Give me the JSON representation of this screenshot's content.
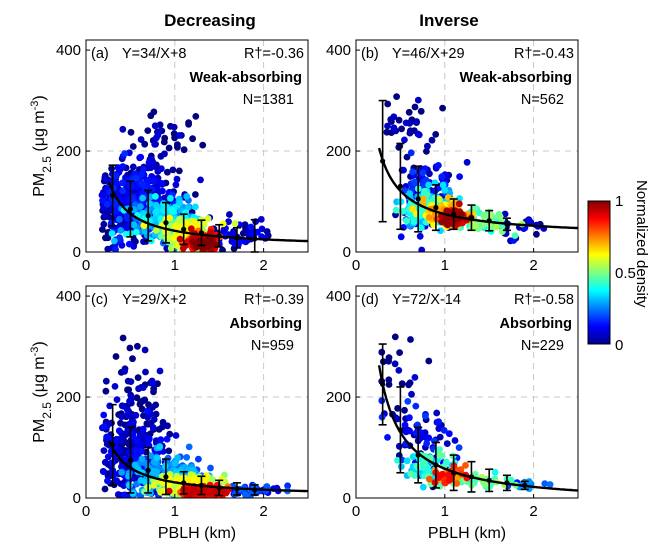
{
  "chart_data": {
    "type": "scatter",
    "colorbar": {
      "label": "Normalized density",
      "ticks": [
        "0",
        "0.5",
        "1"
      ],
      "colormap": "jet"
    },
    "panels": [
      {
        "column_title": "Decreasing",
        "panel_label": "(a)",
        "fit_equation": "Y=34/X+8",
        "r_text": "R†=-0.36",
        "category": "Weak-absorbing",
        "n_text": "N=1381",
        "fit": {
          "a": 34,
          "b": 8
        },
        "xlim": [
          0,
          2.5
        ],
        "ylim": [
          0,
          420
        ],
        "xticks": [
          "0",
          "1",
          "2"
        ],
        "yticks": [
          "0",
          "200",
          "400"
        ],
        "ylabel_show": true,
        "xlabel_show": false,
        "bins": [
          {
            "x": 0.3,
            "mean": 112,
            "sd": 60
          },
          {
            "x": 0.5,
            "mean": 85,
            "sd": 55
          },
          {
            "x": 0.7,
            "mean": 72,
            "sd": 50
          },
          {
            "x": 0.9,
            "mean": 58,
            "sd": 40
          },
          {
            "x": 1.1,
            "mean": 45,
            "sd": 30
          },
          {
            "x": 1.3,
            "mean": 38,
            "sd": 25
          },
          {
            "x": 1.5,
            "mean": 32,
            "sd": 22
          },
          {
            "x": 1.7,
            "mean": 28,
            "sd": 20
          },
          {
            "x": 1.9,
            "mean": 26,
            "sd": 38
          }
        ],
        "clusters": [
          {
            "cx": 0.55,
            "cy": 100,
            "sx": 0.35,
            "sy": 60,
            "n": 380,
            "d": 0.08
          },
          {
            "cx": 0.6,
            "cy": 95,
            "sx": 0.45,
            "sy": 70,
            "n": 140,
            "d": 0.02
          },
          {
            "cx": 0.9,
            "cy": 60,
            "sx": 0.3,
            "sy": 35,
            "n": 220,
            "d": 0.3
          },
          {
            "cx": 1.15,
            "cy": 40,
            "sx": 0.25,
            "sy": 22,
            "n": 160,
            "d": 0.55
          },
          {
            "cx": 1.3,
            "cy": 22,
            "sx": 0.15,
            "sy": 12,
            "n": 130,
            "d": 0.85
          },
          {
            "cx": 1.35,
            "cy": 15,
            "sx": 0.08,
            "sy": 7,
            "n": 70,
            "d": 1.0
          },
          {
            "cx": 1.7,
            "cy": 35,
            "sx": 0.3,
            "sy": 25,
            "n": 60,
            "d": 0.05
          },
          {
            "cx": 0.8,
            "cy": 220,
            "sx": 0.3,
            "sy": 50,
            "n": 40,
            "d": 0.0
          }
        ]
      },
      {
        "column_title": "Inverse",
        "panel_label": "(b)",
        "fit_equation": "Y=46/X+29",
        "r_text": "R†=-0.43",
        "category": "Weak-absorbing",
        "n_text": "N=562",
        "fit": {
          "a": 46,
          "b": 29
        },
        "xlim": [
          0,
          2.5
        ],
        "ylim": [
          0,
          420
        ],
        "xticks": [
          "0",
          "1",
          "2"
        ],
        "yticks": [
          "0",
          "200",
          "400"
        ],
        "ylabel_show": false,
        "xlabel_show": false,
        "bins": [
          {
            "x": 0.3,
            "mean": 180,
            "sd": 120
          },
          {
            "x": 0.5,
            "mean": 130,
            "sd": 85
          },
          {
            "x": 0.7,
            "mean": 105,
            "sd": 65
          },
          {
            "x": 0.9,
            "mean": 88,
            "sd": 45
          },
          {
            "x": 1.1,
            "mean": 75,
            "sd": 30
          },
          {
            "x": 1.3,
            "mean": 68,
            "sd": 25
          },
          {
            "x": 1.5,
            "mean": 62,
            "sd": 20
          },
          {
            "x": 1.7,
            "mean": 55,
            "sd": 12
          }
        ],
        "clusters": [
          {
            "cx": 0.8,
            "cy": 110,
            "sx": 0.3,
            "sy": 55,
            "n": 120,
            "d": 0.1
          },
          {
            "cx": 0.85,
            "cy": 90,
            "sx": 0.25,
            "sy": 30,
            "n": 150,
            "d": 0.35
          },
          {
            "cx": 1.0,
            "cy": 75,
            "sx": 0.2,
            "sy": 20,
            "n": 130,
            "d": 0.65
          },
          {
            "cx": 1.1,
            "cy": 68,
            "sx": 0.12,
            "sy": 12,
            "n": 90,
            "d": 0.9
          },
          {
            "cx": 1.45,
            "cy": 60,
            "sx": 0.25,
            "sy": 18,
            "n": 50,
            "d": 0.45
          },
          {
            "cx": 0.6,
            "cy": 250,
            "sx": 0.25,
            "sy": 80,
            "n": 40,
            "d": 0.0
          },
          {
            "cx": 1.8,
            "cy": 50,
            "sx": 0.3,
            "sy": 20,
            "n": 25,
            "d": 0.05
          }
        ]
      },
      {
        "column_title": "",
        "panel_label": "(c)",
        "fit_equation": "Y=29/X+2",
        "r_text": "R†=-0.39",
        "category": "Absorbing",
        "n_text": "N=959",
        "fit": {
          "a": 29,
          "b": 2
        },
        "xlim": [
          0,
          2.5
        ],
        "ylim": [
          0,
          420
        ],
        "xticks": [
          "0",
          "1",
          "2"
        ],
        "yticks": [
          "0",
          "200",
          "400"
        ],
        "ylabel_show": true,
        "xlabel_show": true,
        "bins": [
          {
            "x": 0.3,
            "mean": 105,
            "sd": 80
          },
          {
            "x": 0.5,
            "mean": 75,
            "sd": 65
          },
          {
            "x": 0.7,
            "mean": 55,
            "sd": 45
          },
          {
            "x": 0.9,
            "mean": 42,
            "sd": 35
          },
          {
            "x": 1.1,
            "mean": 30,
            "sd": 22
          },
          {
            "x": 1.3,
            "mean": 25,
            "sd": 18
          },
          {
            "x": 1.5,
            "mean": 20,
            "sd": 15
          },
          {
            "x": 1.7,
            "mean": 18,
            "sd": 12
          },
          {
            "x": 1.9,
            "mean": 16,
            "sd": 10
          }
        ],
        "clusters": [
          {
            "cx": 0.5,
            "cy": 90,
            "sx": 0.3,
            "sy": 70,
            "n": 260,
            "d": 0.05
          },
          {
            "cx": 0.9,
            "cy": 45,
            "sx": 0.35,
            "sy": 35,
            "n": 220,
            "d": 0.25
          },
          {
            "cx": 1.15,
            "cy": 25,
            "sx": 0.3,
            "sy": 18,
            "n": 180,
            "d": 0.55
          },
          {
            "cx": 1.3,
            "cy": 12,
            "sx": 0.2,
            "sy": 8,
            "n": 140,
            "d": 0.85
          },
          {
            "cx": 0.6,
            "cy": 200,
            "sx": 0.25,
            "sy": 70,
            "n": 60,
            "d": 0.0
          },
          {
            "cx": 1.8,
            "cy": 15,
            "sx": 0.3,
            "sy": 10,
            "n": 50,
            "d": 0.15
          }
        ]
      },
      {
        "column_title": "",
        "panel_label": "(d)",
        "fit_equation": "Y=72/X-14",
        "r_text": "R†=-0.58",
        "category": "Absorbing",
        "n_text": "N=229",
        "fit": {
          "a": 72,
          "b": -14
        },
        "xlim": [
          0,
          2.5
        ],
        "ylim": [
          0,
          420
        ],
        "xticks": [
          "0",
          "1",
          "2"
        ],
        "yticks": [
          "0",
          "200",
          "400"
        ],
        "ylabel_show": false,
        "xlabel_show": true,
        "bins": [
          {
            "x": 0.3,
            "mean": 225,
            "sd": 80
          },
          {
            "x": 0.5,
            "mean": 135,
            "sd": 85
          },
          {
            "x": 0.7,
            "mean": 85,
            "sd": 55
          },
          {
            "x": 0.9,
            "mean": 65,
            "sd": 45
          },
          {
            "x": 1.1,
            "mean": 50,
            "sd": 35
          },
          {
            "x": 1.3,
            "mean": 42,
            "sd": 30
          },
          {
            "x": 1.5,
            "mean": 35,
            "sd": 22
          },
          {
            "x": 1.7,
            "mean": 30,
            "sd": 15
          },
          {
            "x": 1.9,
            "mean": 25,
            "sd": 8
          }
        ],
        "clusters": [
          {
            "cx": 0.7,
            "cy": 110,
            "sx": 0.3,
            "sy": 70,
            "n": 70,
            "d": 0.1
          },
          {
            "cx": 0.85,
            "cy": 60,
            "sx": 0.25,
            "sy": 30,
            "n": 60,
            "d": 0.4
          },
          {
            "cx": 1.05,
            "cy": 45,
            "sx": 0.15,
            "sy": 15,
            "n": 40,
            "d": 0.8
          },
          {
            "cx": 1.4,
            "cy": 35,
            "sx": 0.3,
            "sy": 15,
            "n": 30,
            "d": 0.45
          },
          {
            "cx": 0.5,
            "cy": 250,
            "sx": 0.2,
            "sy": 60,
            "n": 20,
            "d": 0.0
          },
          {
            "cx": 1.9,
            "cy": 25,
            "sx": 0.2,
            "sy": 8,
            "n": 15,
            "d": 0.2
          }
        ]
      }
    ]
  }
}
